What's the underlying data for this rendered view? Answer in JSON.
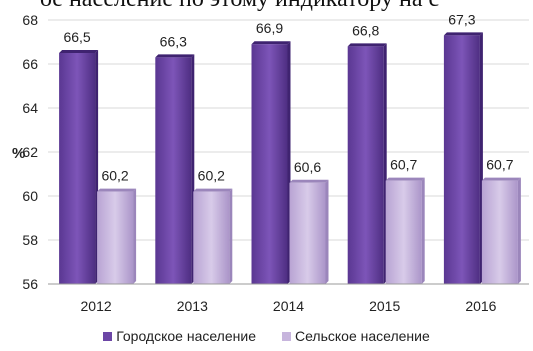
{
  "header_fragment": "ое население по этому индикатору на с",
  "chart_data": {
    "type": "bar",
    "categories": [
      "2012",
      "2013",
      "2014",
      "2015",
      "2016"
    ],
    "series": [
      {
        "name": "Городское население",
        "values": [
          66.5,
          66.3,
          66.9,
          66.8,
          67.3
        ],
        "labels": [
          "66,5",
          "66,3",
          "66,9",
          "66,8",
          "67,3"
        ],
        "color": "#6c46a6"
      },
      {
        "name": "Сельское население",
        "values": [
          60.2,
          60.2,
          60.6,
          60.7,
          60.7
        ],
        "labels": [
          "60,2",
          "60,2",
          "60,6",
          "60,7",
          "60,7"
        ],
        "color": "#c7b5dd"
      }
    ],
    "ylabel": "%",
    "ylim": [
      56,
      68
    ],
    "yticks": [
      "56",
      "58",
      "60",
      "62",
      "64",
      "66",
      "68"
    ],
    "legend_position": "bottom"
  }
}
